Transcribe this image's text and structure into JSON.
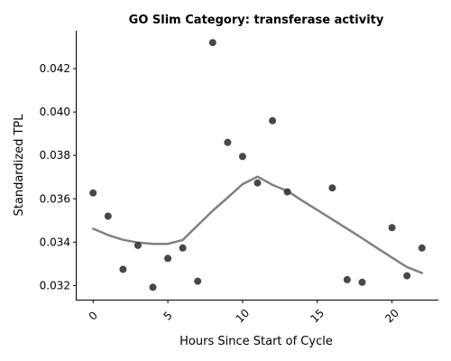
{
  "chart_data": {
    "type": "scatter",
    "title": "GO Slim Category: transferase activity",
    "xlabel": "Hours Since Start of Cycle",
    "ylabel": "Standardized TPL",
    "xlim": [
      -1.1,
      23.1
    ],
    "ylim": [
      0.03135,
      0.04375
    ],
    "xticks": [
      0,
      5,
      10,
      15,
      20
    ],
    "yticks": [
      0.032,
      0.034,
      0.036,
      0.038,
      0.04,
      0.042
    ],
    "ytick_labels": [
      "0.032",
      "0.034",
      "0.036",
      "0.038",
      "0.040",
      "0.042"
    ],
    "grid": false,
    "points": {
      "x": [
        0,
        1,
        2,
        3,
        4,
        5,
        6,
        7,
        8,
        9,
        10,
        11,
        12,
        13,
        16,
        17,
        18,
        20,
        21,
        22
      ],
      "y": [
        0.03627,
        0.0352,
        0.03275,
        0.03385,
        0.03192,
        0.03325,
        0.03373,
        0.0322,
        0.0432,
        0.0386,
        0.03795,
        0.03673,
        0.0396,
        0.03632,
        0.0365,
        0.03227,
        0.03215,
        0.03467,
        0.03245,
        0.03373
      ],
      "color": "#333333"
    },
    "trend": {
      "x": [
        0,
        1,
        2,
        3,
        4,
        5,
        6,
        7,
        8,
        9,
        10,
        11,
        12,
        13,
        14,
        15,
        16,
        17,
        18,
        19,
        20,
        21,
        22
      ],
      "y": [
        0.03462,
        0.03433,
        0.03411,
        0.03398,
        0.03392,
        0.03392,
        0.0341,
        0.03478,
        0.03545,
        0.03605,
        0.03667,
        0.03702,
        0.03664,
        0.03636,
        0.03591,
        0.03548,
        0.03505,
        0.03462,
        0.03418,
        0.03373,
        0.03329,
        0.03285,
        0.03258
      ],
      "color": "#808080"
    }
  }
}
